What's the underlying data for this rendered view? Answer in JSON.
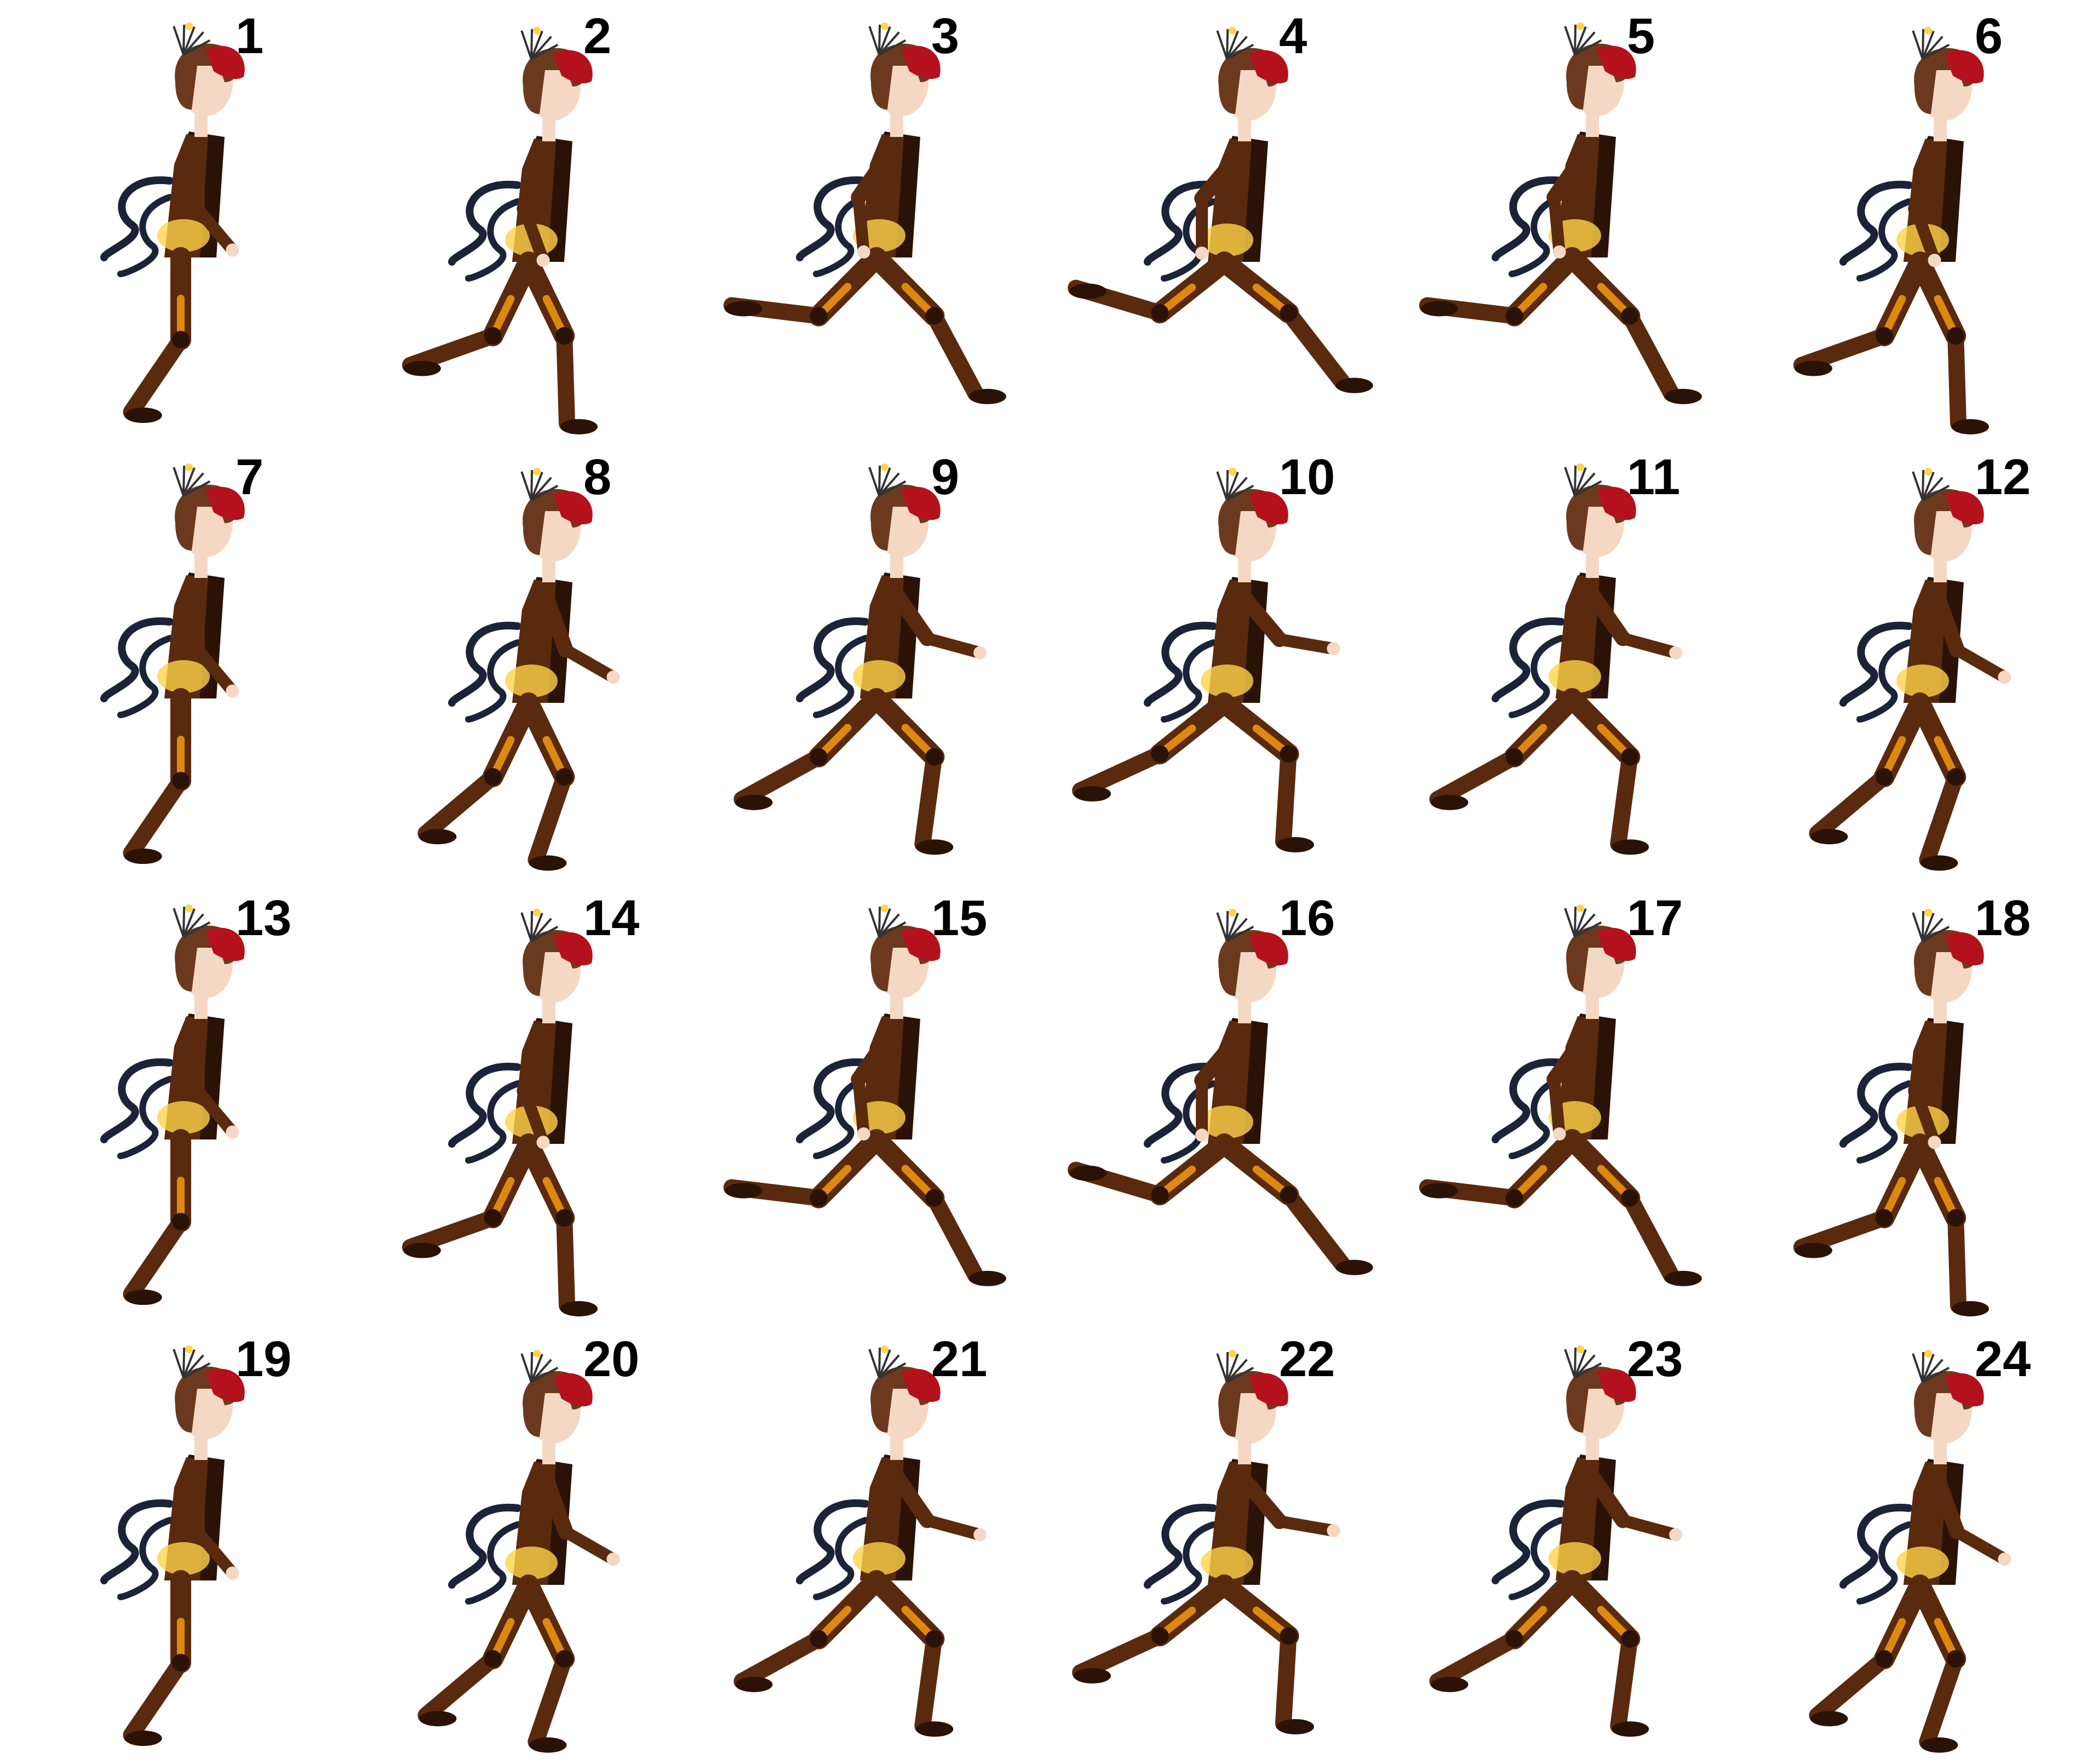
{
  "sprite_sheet": {
    "columns": 6,
    "rows": 4,
    "frames": [
      {
        "label": "1"
      },
      {
        "label": "2"
      },
      {
        "label": "3"
      },
      {
        "label": "4"
      },
      {
        "label": "5"
      },
      {
        "label": "6"
      },
      {
        "label": "7"
      },
      {
        "label": "8"
      },
      {
        "label": "9"
      },
      {
        "label": "10"
      },
      {
        "label": "11"
      },
      {
        "label": "12"
      },
      {
        "label": "13"
      },
      {
        "label": "14"
      },
      {
        "label": "15"
      },
      {
        "label": "16"
      },
      {
        "label": "17"
      },
      {
        "label": "18"
      },
      {
        "label": "19"
      },
      {
        "label": "20"
      },
      {
        "label": "21"
      },
      {
        "label": "22"
      },
      {
        "label": "23"
      },
      {
        "label": "24"
      }
    ]
  },
  "colors": {
    "background": "#ffffff",
    "hair_red": "#b3121c",
    "hair_brown": "#6b3a1e",
    "suit_brown": "#5a2a0e",
    "suit_dark": "#2a1206",
    "ribbon_navy": "#1b2338",
    "glow_orange": "#f59a10",
    "glow_yellow": "#ffd34a",
    "skin": "#f5d8c4",
    "label": "#000000"
  },
  "character": {
    "icon": "running-girl-sprite"
  }
}
